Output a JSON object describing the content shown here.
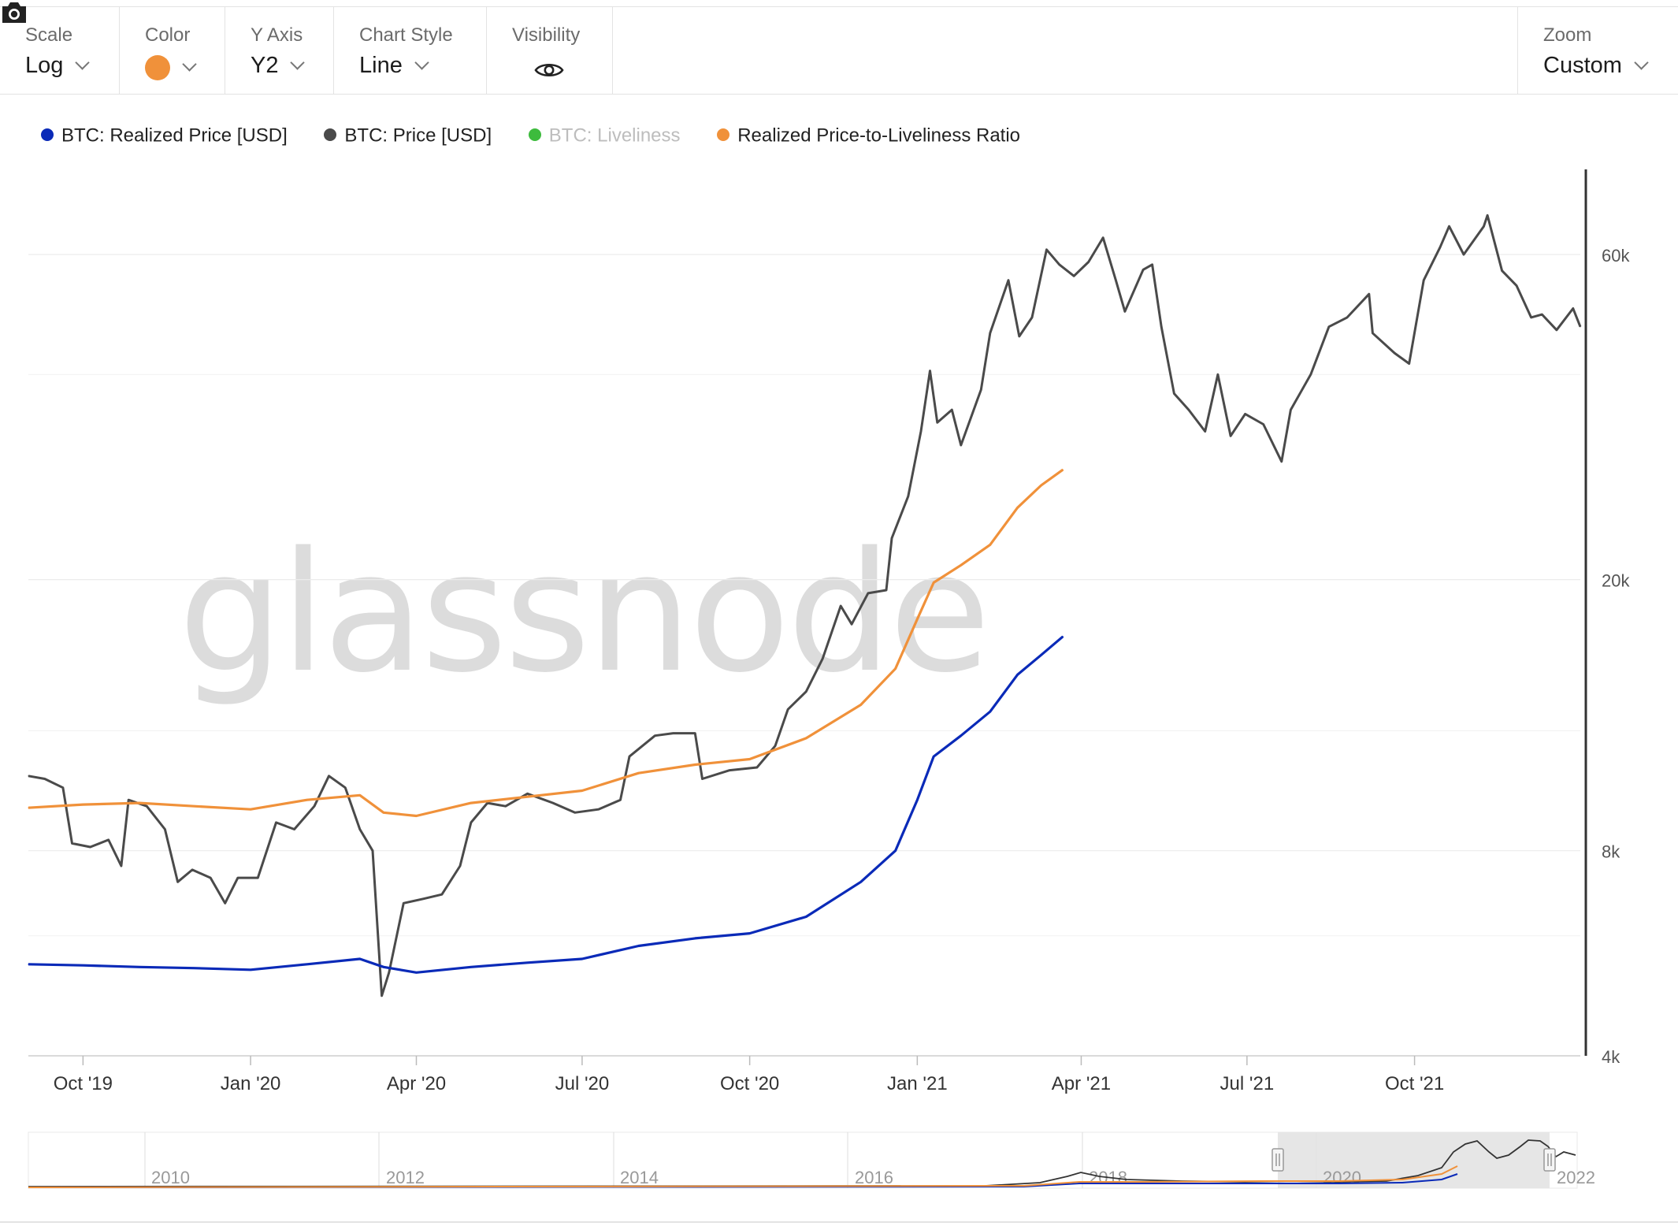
{
  "toolbar": {
    "scale": {
      "label": "Scale",
      "value": "Log"
    },
    "color": {
      "label": "Color",
      "value": "#f0913a"
    },
    "y_axis": {
      "label": "Y Axis",
      "value": "Y2"
    },
    "chart_style": {
      "label": "Chart Style",
      "value": "Line"
    },
    "visibility": {
      "label": "Visibility",
      "icon": "eye-icon"
    },
    "zoom": {
      "label": "Zoom",
      "value": "Custom"
    }
  },
  "legend": [
    {
      "label": "BTC: Realized Price [USD]",
      "color": "#0a2ab8",
      "visible": true
    },
    {
      "label": "BTC: Price [USD]",
      "color": "#4a4a4a",
      "visible": true
    },
    {
      "label": "BTC: Liveliness",
      "color": "#3dbb3d",
      "visible": false
    },
    {
      "label": "Realized Price-to-Liveliness Ratio",
      "color": "#f0913a",
      "visible": true
    }
  ],
  "watermark": "glassnode",
  "camera_icon": "camera-icon",
  "chart_data": {
    "type": "line",
    "yscale": "log",
    "ylim": [
      4000,
      80000
    ],
    "yticks": [
      {
        "value": 4000,
        "label": "4k"
      },
      {
        "value": 8000,
        "label": "8k"
      },
      {
        "value": 20000,
        "label": "20k"
      },
      {
        "value": 60000,
        "label": "60k"
      }
    ],
    "xlim": [
      "2019-09-01",
      "2021-12-31"
    ],
    "xticks": [
      {
        "date": "2019-10-01",
        "label": "Oct '19"
      },
      {
        "date": "2020-01-01",
        "label": "Jan '20"
      },
      {
        "date": "2020-04-01",
        "label": "Apr '20"
      },
      {
        "date": "2020-07-01",
        "label": "Jul '20"
      },
      {
        "date": "2020-10-01",
        "label": "Oct '20"
      },
      {
        "date": "2021-01-01",
        "label": "Jan '21"
      },
      {
        "date": "2021-04-01",
        "label": "Apr '21"
      },
      {
        "date": "2021-07-01",
        "label": "Jul '21"
      },
      {
        "date": "2021-10-01",
        "label": "Oct '21"
      }
    ],
    "series": [
      {
        "name": "BTC: Price [USD]",
        "color": "#4a4a4a",
        "points": [
          [
            "2019-09-01",
            10300
          ],
          [
            "2019-09-10",
            10200
          ],
          [
            "2019-09-20",
            9900
          ],
          [
            "2019-09-25",
            8200
          ],
          [
            "2019-10-05",
            8100
          ],
          [
            "2019-10-15",
            8300
          ],
          [
            "2019-10-22",
            7600
          ],
          [
            "2019-10-26",
            9500
          ],
          [
            "2019-11-05",
            9300
          ],
          [
            "2019-11-15",
            8600
          ],
          [
            "2019-11-22",
            7200
          ],
          [
            "2019-11-30",
            7500
          ],
          [
            "2019-12-10",
            7300
          ],
          [
            "2019-12-18",
            6700
          ],
          [
            "2019-12-25",
            7300
          ],
          [
            "2020-01-05",
            7300
          ],
          [
            "2020-01-15",
            8800
          ],
          [
            "2020-01-25",
            8600
          ],
          [
            "2020-02-05",
            9300
          ],
          [
            "2020-02-13",
            10300
          ],
          [
            "2020-02-22",
            9900
          ],
          [
            "2020-03-01",
            8600
          ],
          [
            "2020-03-08",
            8000
          ],
          [
            "2020-03-13",
            4900
          ],
          [
            "2020-03-17",
            5300
          ],
          [
            "2020-03-25",
            6700
          ],
          [
            "2020-04-05",
            6800
          ],
          [
            "2020-04-15",
            6900
          ],
          [
            "2020-04-25",
            7600
          ],
          [
            "2020-05-01",
            8800
          ],
          [
            "2020-05-10",
            9400
          ],
          [
            "2020-05-20",
            9300
          ],
          [
            "2020-06-01",
            9700
          ],
          [
            "2020-06-15",
            9400
          ],
          [
            "2020-06-27",
            9100
          ],
          [
            "2020-07-10",
            9200
          ],
          [
            "2020-07-22",
            9500
          ],
          [
            "2020-07-27",
            11000
          ],
          [
            "2020-08-10",
            11800
          ],
          [
            "2020-08-20",
            11900
          ],
          [
            "2020-09-01",
            11900
          ],
          [
            "2020-09-05",
            10200
          ],
          [
            "2020-09-20",
            10500
          ],
          [
            "2020-10-05",
            10600
          ],
          [
            "2020-10-15",
            11400
          ],
          [
            "2020-10-22",
            12900
          ],
          [
            "2020-11-01",
            13700
          ],
          [
            "2020-11-10",
            15300
          ],
          [
            "2020-11-20",
            18300
          ],
          [
            "2020-11-26",
            17200
          ],
          [
            "2020-12-05",
            19100
          ],
          [
            "2020-12-15",
            19300
          ],
          [
            "2020-12-18",
            23000
          ],
          [
            "2020-12-27",
            26500
          ],
          [
            "2021-01-03",
            33000
          ],
          [
            "2021-01-08",
            40500
          ],
          [
            "2021-01-12",
            34000
          ],
          [
            "2021-01-20",
            35500
          ],
          [
            "2021-01-25",
            31500
          ],
          [
            "2021-02-05",
            38000
          ],
          [
            "2021-02-10",
            46000
          ],
          [
            "2021-02-20",
            55000
          ],
          [
            "2021-02-26",
            45500
          ],
          [
            "2021-03-05",
            48500
          ],
          [
            "2021-03-13",
            61000
          ],
          [
            "2021-03-20",
            58000
          ],
          [
            "2021-03-28",
            55800
          ],
          [
            "2021-04-05",
            58500
          ],
          [
            "2021-04-13",
            63500
          ],
          [
            "2021-04-20",
            55000
          ],
          [
            "2021-04-25",
            49500
          ],
          [
            "2021-05-05",
            57000
          ],
          [
            "2021-05-10",
            58000
          ],
          [
            "2021-05-15",
            47000
          ],
          [
            "2021-05-22",
            37500
          ],
          [
            "2021-05-30",
            35500
          ],
          [
            "2021-06-08",
            33000
          ],
          [
            "2021-06-15",
            40000
          ],
          [
            "2021-06-22",
            32500
          ],
          [
            "2021-06-30",
            35000
          ],
          [
            "2021-07-10",
            33800
          ],
          [
            "2021-07-20",
            29800
          ],
          [
            "2021-07-25",
            35500
          ],
          [
            "2021-08-05",
            40000
          ],
          [
            "2021-08-15",
            47000
          ],
          [
            "2021-08-25",
            48500
          ],
          [
            "2021-09-06",
            52500
          ],
          [
            "2021-09-08",
            46000
          ],
          [
            "2021-09-20",
            43000
          ],
          [
            "2021-09-28",
            41500
          ],
          [
            "2021-10-06",
            55000
          ],
          [
            "2021-10-15",
            61500
          ],
          [
            "2021-10-20",
            66000
          ],
          [
            "2021-10-28",
            60000
          ],
          [
            "2021-11-08",
            66000
          ],
          [
            "2021-11-10",
            68500
          ],
          [
            "2021-11-18",
            56800
          ],
          [
            "2021-11-26",
            54000
          ],
          [
            "2021-12-04",
            48500
          ],
          [
            "2021-12-10",
            49000
          ],
          [
            "2021-12-18",
            46500
          ],
          [
            "2021-12-27",
            50000
          ],
          [
            "2021-12-31",
            47000
          ]
        ]
      },
      {
        "name": "BTC: Realized Price [USD]",
        "color": "#0a2ab8",
        "points": [
          [
            "2019-09-01",
            5450
          ],
          [
            "2019-10-01",
            5430
          ],
          [
            "2019-11-01",
            5400
          ],
          [
            "2019-12-01",
            5380
          ],
          [
            "2020-01-01",
            5350
          ],
          [
            "2020-02-01",
            5450
          ],
          [
            "2020-03-01",
            5550
          ],
          [
            "2020-03-14",
            5400
          ],
          [
            "2020-04-01",
            5300
          ],
          [
            "2020-05-01",
            5400
          ],
          [
            "2020-06-01",
            5480
          ],
          [
            "2020-07-01",
            5550
          ],
          [
            "2020-08-01",
            5800
          ],
          [
            "2020-09-01",
            5950
          ],
          [
            "2020-10-01",
            6050
          ],
          [
            "2020-11-01",
            6400
          ],
          [
            "2020-12-01",
            7200
          ],
          [
            "2020-12-20",
            8000
          ],
          [
            "2021-01-01",
            9500
          ],
          [
            "2021-01-10",
            11000
          ],
          [
            "2021-01-25",
            11800
          ],
          [
            "2021-02-10",
            12800
          ],
          [
            "2021-02-25",
            14500
          ],
          [
            "2021-03-10",
            15500
          ],
          [
            "2021-03-22",
            16500
          ]
        ]
      },
      {
        "name": "Realized Price-to-Liveliness Ratio",
        "color": "#f0913a",
        "points": [
          [
            "2019-09-01",
            9250
          ],
          [
            "2019-10-01",
            9350
          ],
          [
            "2019-11-01",
            9400
          ],
          [
            "2019-12-01",
            9300
          ],
          [
            "2020-01-01",
            9200
          ],
          [
            "2020-02-01",
            9500
          ],
          [
            "2020-03-01",
            9650
          ],
          [
            "2020-03-14",
            9100
          ],
          [
            "2020-04-01",
            9000
          ],
          [
            "2020-05-01",
            9400
          ],
          [
            "2020-06-01",
            9600
          ],
          [
            "2020-07-01",
            9800
          ],
          [
            "2020-08-01",
            10400
          ],
          [
            "2020-09-01",
            10700
          ],
          [
            "2020-10-01",
            10900
          ],
          [
            "2020-11-01",
            11700
          ],
          [
            "2020-12-01",
            13100
          ],
          [
            "2020-12-20",
            14800
          ],
          [
            "2021-01-01",
            17500
          ],
          [
            "2021-01-10",
            19800
          ],
          [
            "2021-01-25",
            21000
          ],
          [
            "2021-02-10",
            22500
          ],
          [
            "2021-02-25",
            25500
          ],
          [
            "2021-03-10",
            27500
          ],
          [
            "2021-03-22",
            29000
          ]
        ]
      }
    ],
    "navigator": {
      "labels": [
        "2010",
        "2012",
        "2014",
        "2016",
        "2018",
        "2020",
        "2022"
      ]
    }
  }
}
